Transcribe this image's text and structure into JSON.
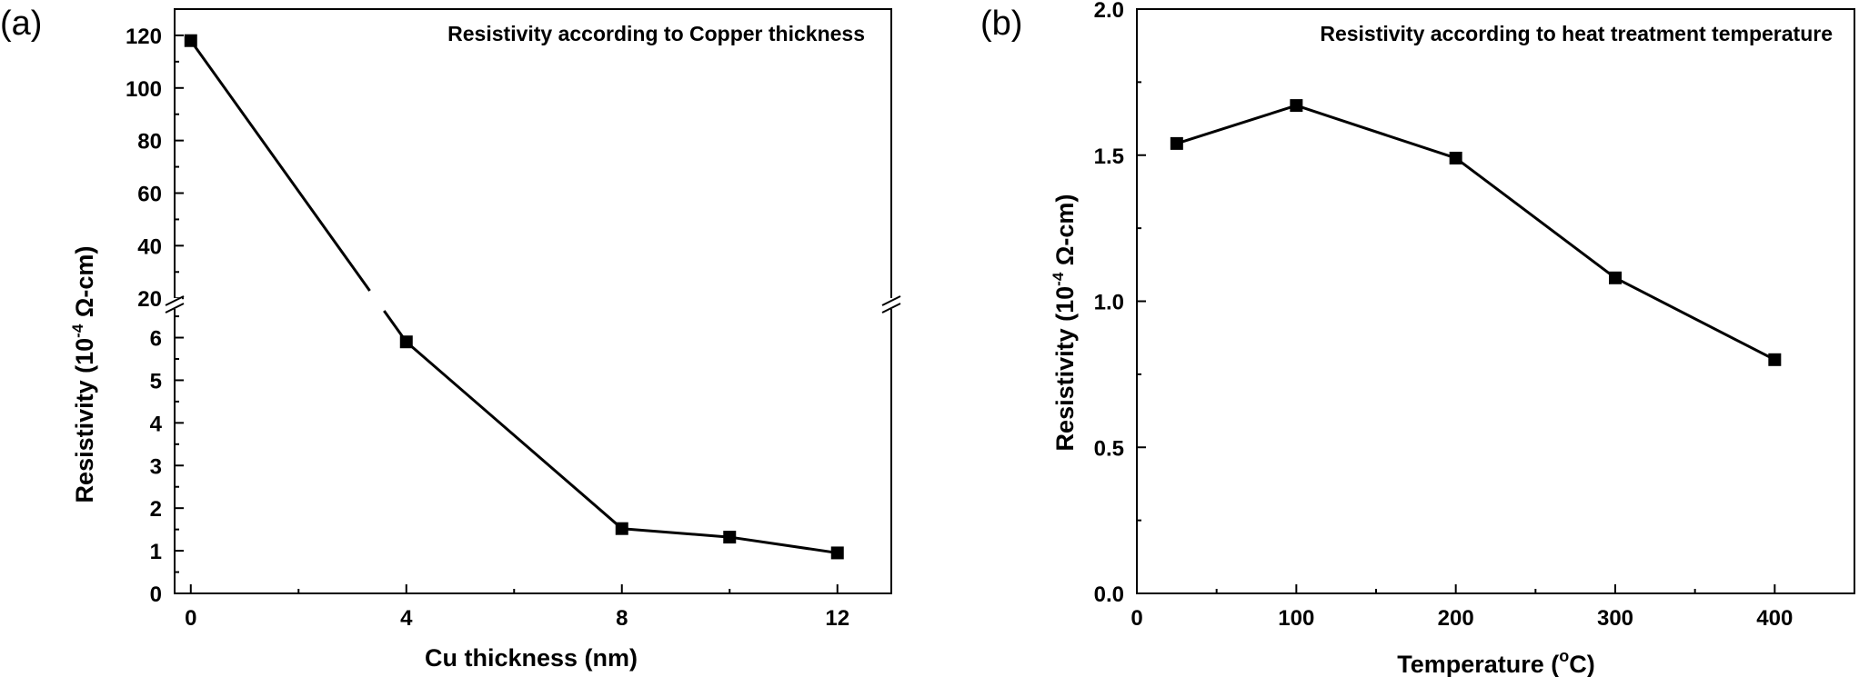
{
  "chart_data": [
    {
      "type": "line",
      "panel_label": "(a)",
      "title": "Resistivity according to Copper thickness",
      "xlabel": "Cu thickness (nm)",
      "ylabel": {
        "prefix": "Resistivity (10",
        "exponent": "-4",
        "suffix": " Ω-cm)"
      },
      "x_ticks": [
        "0",
        "4",
        "8",
        "12"
      ],
      "y_ticks_lower": [
        "0",
        "1",
        "2",
        "3",
        "4",
        "5",
        "6"
      ],
      "y_ticks_upper": [
        "20",
        "40",
        "60",
        "80",
        "100",
        "120"
      ],
      "broken_axis": true,
      "xlim": [
        -0.3,
        13
      ],
      "ylim_lower": [
        0,
        6.8
      ],
      "ylim_upper": [
        18,
        130
      ],
      "x": [
        0,
        4,
        8,
        10,
        12
      ],
      "y": [
        118,
        5.9,
        1.52,
        1.32,
        0.95
      ],
      "marker": "square",
      "grid": false
    },
    {
      "type": "line",
      "panel_label": "(b)",
      "title": "Resistivity according to heat treatment temperature",
      "xlabel": {
        "prefix": "Temperature (",
        "superscript": "o",
        "suffix": "C)"
      },
      "ylabel": {
        "prefix": "Resistivity (10",
        "exponent": "-4",
        "suffix": " Ω-cm)"
      },
      "x_ticks": [
        "0",
        "100",
        "200",
        "300",
        "400"
      ],
      "y_ticks": [
        "0.0",
        "0.5",
        "1.0",
        "1.5",
        "2.0"
      ],
      "xlim": [
        0,
        450
      ],
      "ylim": [
        0,
        2.0
      ],
      "x": [
        25,
        100,
        200,
        300,
        400
      ],
      "y": [
        1.54,
        1.67,
        1.49,
        1.08,
        0.8
      ],
      "marker": "square",
      "grid": false
    }
  ]
}
